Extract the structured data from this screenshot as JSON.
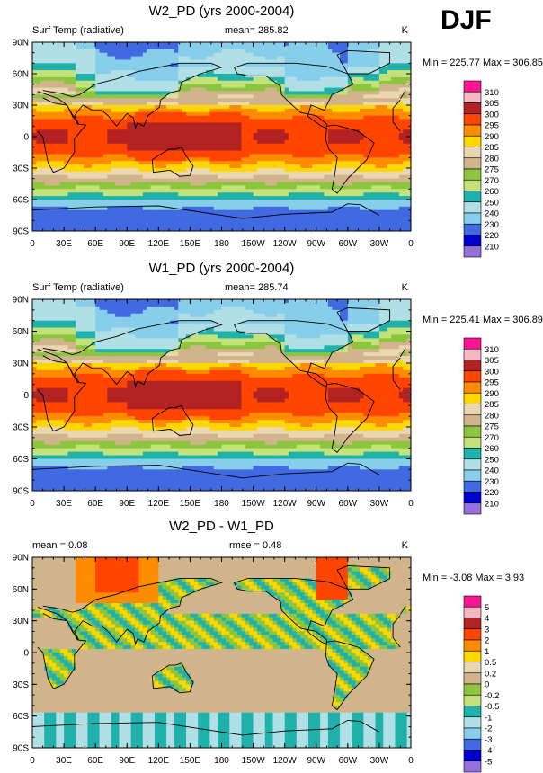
{
  "season": "DJF",
  "chart_data": [
    {
      "type": "heatmap",
      "title": "W2_PD (yrs 2000-2004)",
      "left_label": "Surf Temp (radiative)",
      "mean_text": "mean= 285.82",
      "rmse_text": "",
      "units": "K",
      "minmax": "Min = 225.77 Max = 306.85",
      "lat_ticks": [
        "90N",
        "60N",
        "30N",
        "0",
        "30S",
        "60S",
        "90S"
      ],
      "lon_ticks": [
        "0",
        "30E",
        "60E",
        "90E",
        "120E",
        "150E",
        "180",
        "150W",
        "120W",
        "90W",
        "60W",
        "30W",
        "0"
      ],
      "colorbar_labels": [
        "310",
        "305",
        "300",
        "295",
        "290",
        "285",
        "280",
        "275",
        "270",
        "260",
        "250",
        "240",
        "230",
        "220",
        "210"
      ],
      "colors": [
        "#ff1493",
        "#f6b6c2",
        "#b22222",
        "#ff4500",
        "#ff8c00",
        "#ffd700",
        "#ead7b0",
        "#d2b48c",
        "#8cc63f",
        "#c3e27a",
        "#20b2aa",
        "#b0e0e6",
        "#87ceeb",
        "#4169e1",
        "#0000cd",
        "#9370db"
      ],
      "min": 225.77,
      "max": 306.85
    },
    {
      "type": "heatmap",
      "title": "W1_PD (yrs 2000-2004)",
      "left_label": "Surf Temp (radiative)",
      "mean_text": "mean= 285.74",
      "rmse_text": "",
      "units": "K",
      "minmax": "Min = 225.41 Max = 306.89",
      "lat_ticks": [
        "90N",
        "60N",
        "30N",
        "0",
        "30S",
        "60S",
        "90S"
      ],
      "lon_ticks": [
        "0",
        "30E",
        "60E",
        "90E",
        "120E",
        "150E",
        "180",
        "150W",
        "120W",
        "90W",
        "60W",
        "30W",
        "0"
      ],
      "colorbar_labels": [
        "310",
        "305",
        "300",
        "295",
        "290",
        "285",
        "280",
        "275",
        "270",
        "260",
        "250",
        "240",
        "230",
        "220",
        "210"
      ],
      "colors": [
        "#ff1493",
        "#f6b6c2",
        "#b22222",
        "#ff4500",
        "#ff8c00",
        "#ffd700",
        "#ead7b0",
        "#d2b48c",
        "#8cc63f",
        "#c3e27a",
        "#20b2aa",
        "#b0e0e6",
        "#87ceeb",
        "#4169e1",
        "#0000cd",
        "#9370db"
      ],
      "min": 225.41,
      "max": 306.89
    },
    {
      "type": "heatmap",
      "title": "W2_PD - W1_PD",
      "left_label": "mean =  0.08",
      "mean_text": "",
      "rmse_text": "rmse =   0.48",
      "units": "K",
      "minmax": "Min =  -3.08 Max =   3.93",
      "lat_ticks": [
        "90N",
        "60N",
        "30N",
        "0",
        "30S",
        "60S",
        "90S"
      ],
      "lon_ticks": [
        "0",
        "30E",
        "60E",
        "90E",
        "120E",
        "150E",
        "180",
        "150W",
        "120W",
        "90W",
        "60W",
        "30W",
        "0"
      ],
      "colorbar_labels": [
        "5",
        "4",
        "3",
        "2",
        "1",
        "0.5",
        "0.2",
        "0",
        "-0.2",
        "-0.5",
        "-1",
        "-2",
        "-3",
        "-4",
        "-5"
      ],
      "colors": [
        "#ff1493",
        "#f6b6c2",
        "#b22222",
        "#ff4500",
        "#ff8c00",
        "#ffd700",
        "#ead7b0",
        "#d2b48c",
        "#8cc63f",
        "#c3e27a",
        "#20b2aa",
        "#b0e0e6",
        "#87ceeb",
        "#4169e1",
        "#0000cd",
        "#9370db"
      ],
      "min": -3.08,
      "max": 3.93
    }
  ]
}
